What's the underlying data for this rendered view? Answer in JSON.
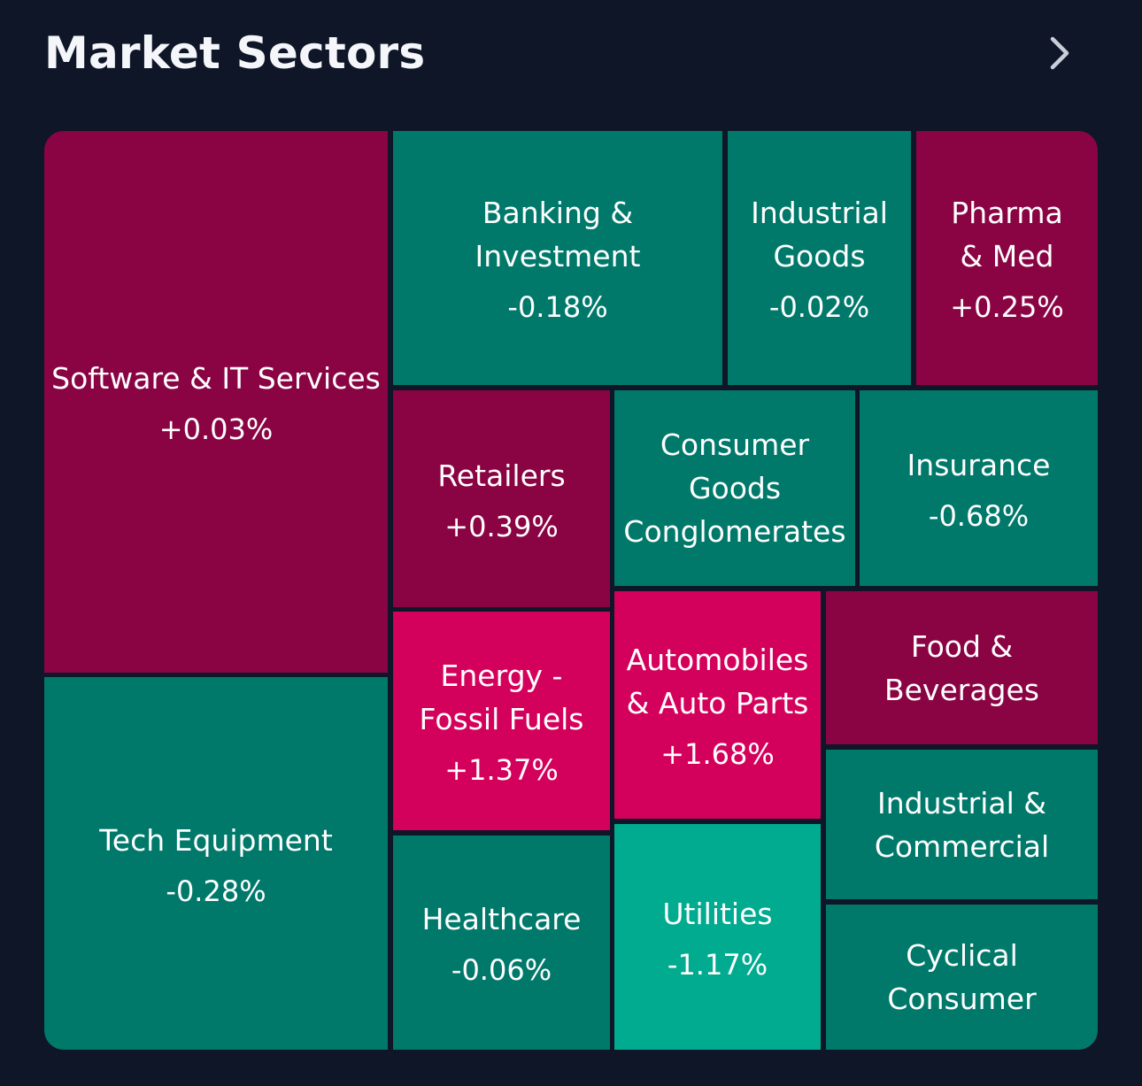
{
  "header": {
    "title": "Market Sectors",
    "chevron_icon": "chevron-right-icon"
  },
  "colors": {
    "background": "#0e1628",
    "small_gain": "#8a0444",
    "large_gain": "#d4015c",
    "small_loss": "#00796b",
    "large_loss": "#00ab8f"
  },
  "chart_data": {
    "type": "treemap",
    "title": "Market Sectors",
    "sectors": [
      {
        "id": "software-it-services",
        "name": "Software & IT Services",
        "change": "+0.03%",
        "value": 0.03
      },
      {
        "id": "tech-equipment",
        "name": "Tech Equipment",
        "change": "-0.28%",
        "value": -0.28
      },
      {
        "id": "banking-investment",
        "name": "Banking &\nInvestment",
        "change": "-0.18%",
        "value": -0.18
      },
      {
        "id": "industrial-goods",
        "name": "Industrial\nGoods",
        "change": "-0.02%",
        "value": -0.02
      },
      {
        "id": "pharma-med",
        "name": "Pharma\n& Med",
        "change": "+0.25%",
        "value": 0.25
      },
      {
        "id": "retailers",
        "name": "Retailers",
        "change": "+0.39%",
        "value": 0.39
      },
      {
        "id": "consumer-goods-conglomerates",
        "name": "Consumer\nGoods\nConglomerates",
        "change": "",
        "value": null
      },
      {
        "id": "insurance",
        "name": "Insurance",
        "change": "-0.68%",
        "value": -0.68
      },
      {
        "id": "energy-fossil-fuels",
        "name": "Energy -\nFossil Fuels",
        "change": "+1.37%",
        "value": 1.37
      },
      {
        "id": "automobiles-auto-parts",
        "name": "Automobiles\n& Auto Parts",
        "change": "+1.68%",
        "value": 1.68
      },
      {
        "id": "food-beverages",
        "name": "Food &\nBeverages",
        "change": "",
        "value": null
      },
      {
        "id": "industrial-commercial",
        "name": "Industrial &\nCommercial",
        "change": "",
        "value": null
      },
      {
        "id": "healthcare",
        "name": "Healthcare",
        "change": "-0.06%",
        "value": -0.06
      },
      {
        "id": "utilities",
        "name": "Utilities",
        "change": "-1.17%",
        "value": -1.17
      },
      {
        "id": "cyclical-consumer",
        "name": "Cyclical\nConsumer",
        "change": "",
        "value": null
      }
    ]
  }
}
